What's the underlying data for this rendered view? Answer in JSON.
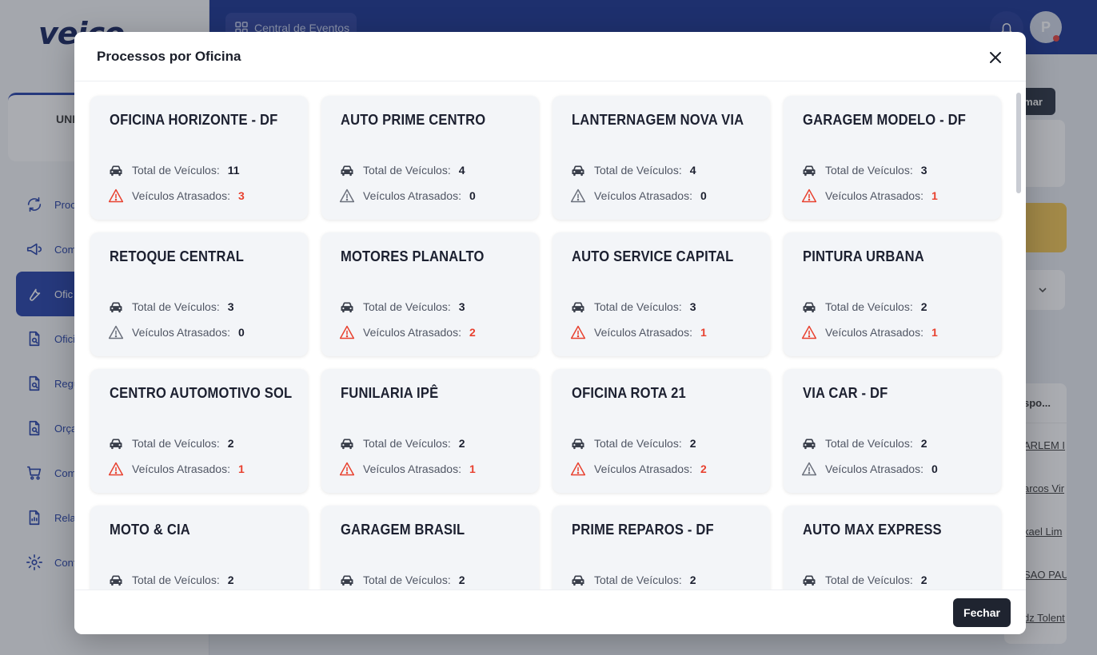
{
  "app": {
    "logo": "veico",
    "unit_label": "UNI",
    "nav": [
      {
        "label": "Proc",
        "icon": "refresh-process-icon"
      },
      {
        "label": "Com",
        "icon": "megaphone-icon"
      },
      {
        "label": "Ofic",
        "icon": "wrench-icon",
        "active": true
      },
      {
        "label": "Ofici",
        "icon": "document-search-icon"
      },
      {
        "label": "Regu",
        "icon": "document-search-icon"
      },
      {
        "label": "Orça",
        "icon": "document-search-icon"
      },
      {
        "label": "Com",
        "icon": "cart-icon"
      },
      {
        "label": "Rela",
        "icon": "report-icon"
      },
      {
        "label": "Conf",
        "icon": "gear-icon"
      }
    ],
    "top_tab": "Central de Eventos",
    "avatar_letter": "P",
    "bg_button": "mar",
    "bg_table_header": "spo...",
    "bg_table_rows": [
      "ARLEM I",
      "arcos Vir",
      "kael Lim",
      "SAO PAU",
      "dz Tolent"
    ]
  },
  "modal": {
    "title": "Processos por Oficina",
    "close_label": "×",
    "footer_button": "Fechar",
    "total_label": "Total de Veículos:",
    "late_label": "Veículos Atrasados:",
    "alert_color": "#e8412f",
    "workshops": [
      {
        "name": "OFICINA HORIZONTE - DF",
        "total": "11",
        "late": "3"
      },
      {
        "name": "AUTO PRIME CENTRO",
        "total": "4",
        "late": "0"
      },
      {
        "name": "LANTERNAGEM NOVA VIA",
        "total": "4",
        "late": "0"
      },
      {
        "name": "GARAGEM MODELO - DF",
        "total": "3",
        "late": "1"
      },
      {
        "name": "RETOQUE CENTRAL",
        "total": "3",
        "late": "0"
      },
      {
        "name": "MOTORES PLANALTO",
        "total": "3",
        "late": "2"
      },
      {
        "name": "AUTO SERVICE CAPITAL",
        "total": "3",
        "late": "1"
      },
      {
        "name": "PINTURA URBANA",
        "total": "2",
        "late": "1"
      },
      {
        "name": "CENTRO AUTOMOTIVO SOL",
        "total": "2",
        "late": "1"
      },
      {
        "name": "FUNILARIA IPÊ",
        "total": "2",
        "late": "1"
      },
      {
        "name": "OFICINA ROTA 21",
        "total": "2",
        "late": "2"
      },
      {
        "name": "VIA CAR - DF",
        "total": "2",
        "late": "0"
      },
      {
        "name": "MOTO & CIA",
        "total": "2",
        "late": ""
      },
      {
        "name": "GARAGEM BRASIL",
        "total": "2",
        "late": ""
      },
      {
        "name": "PRIME REPAROS - DF",
        "total": "2",
        "late": ""
      },
      {
        "name": "AUTO MAX EXPRESS",
        "total": "2",
        "late": ""
      }
    ]
  }
}
